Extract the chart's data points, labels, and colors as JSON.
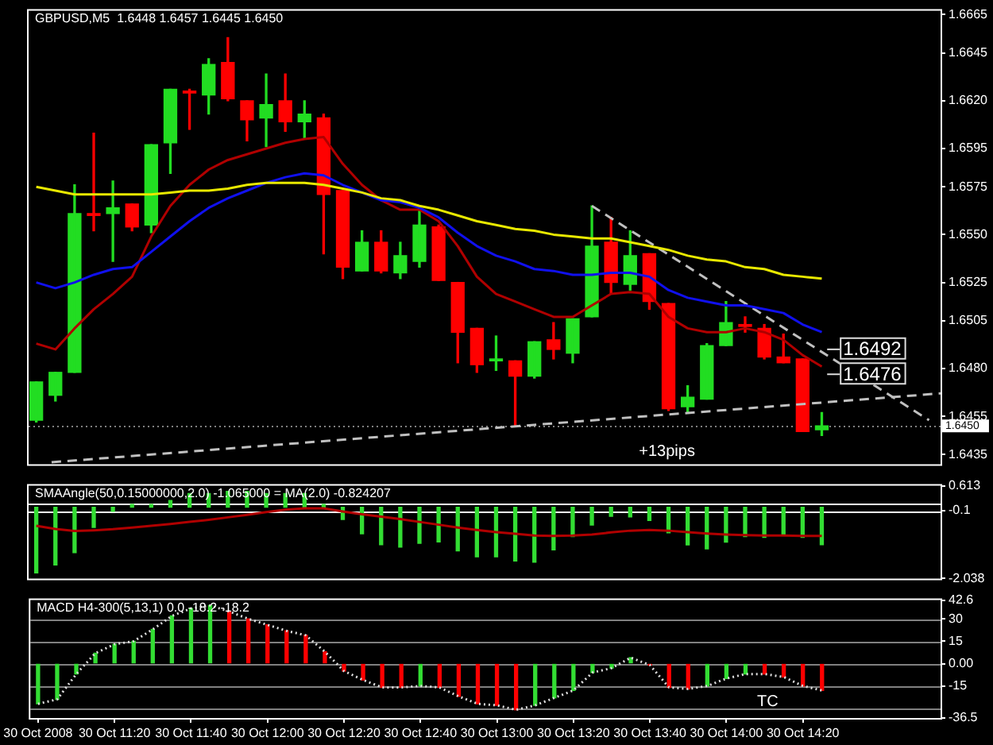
{
  "chart_data": [
    {
      "type": "candlestick",
      "title": "GBPUSD,M5  1.6448 1.6457 1.6445 1.6450",
      "tick_labels": "y",
      "x": [
        "2008-10-30T11:00",
        "2008-10-30T11:05",
        "2008-10-30T11:10",
        "2008-10-30T11:15",
        "2008-10-30T11:20",
        "2008-10-30T11:25",
        "2008-10-30T11:30",
        "2008-10-30T11:35",
        "2008-10-30T11:40",
        "2008-10-30T11:45",
        "2008-10-30T11:50",
        "2008-10-30T11:55",
        "2008-10-30T12:00",
        "2008-10-30T12:05",
        "2008-10-30T12:10",
        "2008-10-30T12:15",
        "2008-10-30T12:20",
        "2008-10-30T12:25",
        "2008-10-30T12:30",
        "2008-10-30T12:35",
        "2008-10-30T12:40",
        "2008-10-30T12:45",
        "2008-10-30T12:50",
        "2008-10-30T12:55",
        "2008-10-30T13:00",
        "2008-10-30T13:05",
        "2008-10-30T13:10",
        "2008-10-30T13:15",
        "2008-10-30T13:20",
        "2008-10-30T13:25",
        "2008-10-30T13:30",
        "2008-10-30T13:35",
        "2008-10-30T13:40",
        "2008-10-30T13:45",
        "2008-10-30T13:50",
        "2008-10-30T13:55",
        "2008-10-30T14:00",
        "2008-10-30T14:05",
        "2008-10-30T14:10",
        "2008-10-30T14:15",
        "2008-10-30T14:20",
        "2008-10-30T14:25"
      ],
      "ohlc": [
        [
          1.6453,
          1.6473,
          1.6452,
          1.6473
        ],
        [
          1.6466,
          1.6478,
          1.6463,
          1.6478
        ],
        [
          1.6478,
          1.6576,
          1.6478,
          1.6561
        ],
        [
          1.6561,
          1.6603,
          1.6552,
          1.656
        ],
        [
          1.6561,
          1.6578,
          1.6536,
          1.6564
        ],
        [
          1.6566,
          1.6566,
          1.6552,
          1.6554
        ],
        [
          1.6555,
          1.6597,
          1.6551,
          1.6597
        ],
        [
          1.6598,
          1.6626,
          1.6582,
          1.6626
        ],
        [
          1.6625,
          1.6626,
          1.6605,
          1.6624
        ],
        [
          1.6623,
          1.6642,
          1.6613,
          1.6639
        ],
        [
          1.664,
          1.6653,
          1.662,
          1.6621
        ],
        [
          1.662,
          1.662,
          1.6599,
          1.661
        ],
        [
          1.6611,
          1.6634,
          1.6596,
          1.6618
        ],
        [
          1.662,
          1.6634,
          1.6604,
          1.6609
        ],
        [
          1.6609,
          1.662,
          1.66,
          1.6613
        ],
        [
          1.6611,
          1.6613,
          1.654,
          1.6571
        ],
        [
          1.6573,
          1.6573,
          1.6527,
          1.6533
        ],
        [
          1.6531,
          1.6552,
          1.6531,
          1.6546
        ],
        [
          1.6546,
          1.6552,
          1.653,
          1.6531
        ],
        [
          1.653,
          1.6546,
          1.6527,
          1.6539
        ],
        [
          1.6536,
          1.6564,
          1.6533,
          1.6555
        ],
        [
          1.6554,
          1.6555,
          1.6526,
          1.6526
        ],
        [
          1.6525,
          1.6525,
          1.6483,
          1.6499
        ],
        [
          1.6501,
          1.6501,
          1.6478,
          1.6482
        ],
        [
          1.6484,
          1.6497,
          1.6479,
          1.6485
        ],
        [
          1.6484,
          1.6484,
          1.645,
          1.6476
        ],
        [
          1.6476,
          1.6494,
          1.6475,
          1.6494
        ],
        [
          1.6495,
          1.6504,
          1.6485,
          1.649
        ],
        [
          1.6488,
          1.6506,
          1.6483,
          1.6506
        ],
        [
          1.6507,
          1.6565,
          1.6507,
          1.6544
        ],
        [
          1.6546,
          1.6559,
          1.6519,
          1.6525
        ],
        [
          1.6524,
          1.6552,
          1.6521,
          1.6539
        ],
        [
          1.654,
          1.654,
          1.6511,
          1.6515
        ],
        [
          1.6514,
          1.6514,
          1.6458,
          1.6459
        ],
        [
          1.646,
          1.6471,
          1.6457,
          1.6465
        ],
        [
          1.6464,
          1.6493,
          1.6464,
          1.6492
        ],
        [
          1.6492,
          1.6515,
          1.6492,
          1.6504
        ],
        [
          1.6503,
          1.6507,
          1.6499,
          1.6502
        ],
        [
          1.6501,
          1.6503,
          1.6485,
          1.6486
        ],
        [
          1.6486,
          1.6498,
          1.6483,
          1.6483
        ],
        [
          1.6485,
          1.6485,
          1.6447,
          1.6447
        ],
        [
          1.6448,
          1.6457,
          1.6445,
          1.645
        ]
      ],
      "colors": [
        "#22dd22",
        "#22dd22",
        "#22dd22",
        "#ff0000",
        "#22dd22",
        "#ff0000",
        "#22dd22",
        "#22dd22",
        "#ff0000",
        "#22dd22",
        "#ff0000",
        "#ff0000",
        "#22dd22",
        "#ff0000",
        "#22dd22",
        "#ff0000",
        "#ff0000",
        "#22dd22",
        "#ff0000",
        "#22dd22",
        "#22dd22",
        "#ff0000",
        "#ff0000",
        "#ff0000",
        "#22dd22",
        "#ff0000",
        "#22dd22",
        "#ff0000",
        "#22dd22",
        "#22dd22",
        "#ff0000",
        "#22dd22",
        "#ff0000",
        "#ff0000",
        "#22dd22",
        "#22dd22",
        "#22dd22",
        "#ff0000",
        "#ff0000",
        "#ff0000",
        "#ff0000",
        "#22dd22"
      ],
      "series": [
        {
          "type": "line",
          "color": "#e8e800",
          "values": [
            1.6575,
            1.6573,
            1.6571,
            1.6571,
            1.6571,
            1.6571,
            1.6571,
            1.6572,
            1.6573,
            1.6573,
            1.6574,
            1.6576,
            1.6577,
            1.6577,
            1.6577,
            1.6576,
            1.6574,
            1.6572,
            1.6569,
            1.6568,
            1.6565,
            1.6563,
            1.656,
            1.6557,
            1.6555,
            1.6553,
            1.6552,
            1.655,
            1.6549,
            1.6548,
            1.6548,
            1.6546,
            1.6544,
            1.6542,
            1.6539,
            1.6537,
            1.6536,
            1.6533,
            1.6532,
            1.6529,
            1.6528,
            1.6527
          ]
        },
        {
          "type": "line",
          "color": "#1010ee",
          "values": [
            1.6525,
            1.6522,
            1.6525,
            1.6529,
            1.6532,
            1.6533,
            1.6541,
            1.6549,
            1.6557,
            1.6564,
            1.6569,
            1.6573,
            1.6577,
            1.658,
            1.6582,
            1.6581,
            1.6576,
            1.6572,
            1.6568,
            1.6567,
            1.6564,
            1.6559,
            1.6551,
            1.6544,
            1.6539,
            1.6536,
            1.6532,
            1.6531,
            1.6529,
            1.6529,
            1.653,
            1.653,
            1.6528,
            1.6521,
            1.6517,
            1.6515,
            1.6513,
            1.6513,
            1.6511,
            1.6509,
            1.6503,
            1.6499
          ]
        },
        {
          "type": "line",
          "color": "#b00000",
          "values": [
            1.6493,
            1.649,
            1.6501,
            1.6511,
            1.6519,
            1.6528,
            1.6549,
            1.6565,
            1.6576,
            1.6584,
            1.6589,
            1.6592,
            1.6595,
            1.6598,
            1.66,
            1.6601,
            1.6587,
            1.6576,
            1.6568,
            1.6563,
            1.6563,
            1.6557,
            1.6544,
            1.6528,
            1.6519,
            1.6515,
            1.6511,
            1.6507,
            1.6507,
            1.6513,
            1.6519,
            1.652,
            1.6519,
            1.6507,
            1.6501,
            1.6499,
            1.6499,
            1.6501,
            1.6499,
            1.6495,
            1.6487,
            1.6481
          ]
        },
        {
          "type": "line",
          "color": "#c0c0c0",
          "line_style": "dashed",
          "x": [
            "2008-10-30T11:04",
            "2008-10-30T14:56"
          ],
          "values": [
            1.6431,
            1.6467
          ]
        },
        {
          "type": "line",
          "color": "#c0c0c0",
          "line_style": "dashed",
          "x": [
            "2008-10-30T13:25",
            "2008-10-30T14:53"
          ],
          "values": [
            1.6565,
            1.6453
          ]
        }
      ],
      "xlim": [
        "2008-10-30T10:58",
        "2008-10-30T14:56"
      ],
      "ylim": [
        1.643,
        1.6667
      ],
      "yticks": [
        1.6665,
        1.6645,
        {
          "value": 1.662,
          "label": "1.6620"
        },
        1.6595,
        1.6575,
        {
          "value": 1.655,
          "label": "1.6550"
        },
        1.6525,
        1.6505,
        {
          "value": 1.648,
          "label": "1.6480"
        },
        1.6455,
        1.6435
      ],
      "ref_lines": [
        {
          "axis": "y",
          "value": 1.645,
          "label": "1.6450",
          "color": "#808080",
          "line_style": "dotted"
        }
      ],
      "annotations": [
        "+13pips",
        "1.6492",
        "1.6476"
      ]
    },
    {
      "type": "bar",
      "title": "SMAAngle(50,0.15000000,2.0) -1.065000 = MA(2.0) -0.824207",
      "tick_labels": "y",
      "x": [
        "2008-10-30T11:00",
        "2008-10-30T11:05",
        "2008-10-30T11:10",
        "2008-10-30T11:15",
        "2008-10-30T11:20",
        "2008-10-30T11:25",
        "2008-10-30T11:30",
        "2008-10-30T11:35",
        "2008-10-30T11:40",
        "2008-10-30T11:45",
        "2008-10-30T11:50",
        "2008-10-30T11:55",
        "2008-10-30T12:00",
        "2008-10-30T12:05",
        "2008-10-30T12:10",
        "2008-10-30T12:15",
        "2008-10-30T12:20",
        "2008-10-30T12:25",
        "2008-10-30T12:30",
        "2008-10-30T12:35",
        "2008-10-30T12:40",
        "2008-10-30T12:45",
        "2008-10-30T12:50",
        "2008-10-30T12:55",
        "2008-10-30T13:00",
        "2008-10-30T13:05",
        "2008-10-30T13:10",
        "2008-10-30T13:15",
        "2008-10-30T13:20",
        "2008-10-30T13:25",
        "2008-10-30T13:30",
        "2008-10-30T13:35",
        "2008-10-30T13:40",
        "2008-10-30T13:45",
        "2008-10-30T13:50",
        "2008-10-30T13:55",
        "2008-10-30T14:00",
        "2008-10-30T14:05",
        "2008-10-30T14:10",
        "2008-10-30T14:15",
        "2008-10-30T14:20",
        "2008-10-30T14:25"
      ],
      "series": [
        {
          "type": "bar",
          "color": "#33dd33",
          "values": [
            -1.88,
            -1.65,
            -1.3,
            -0.58,
            -0.12,
            0.08,
            0.08,
            0.19,
            0.39,
            0.39,
            0.45,
            0.45,
            0.39,
            0.39,
            0.39,
            0.08,
            -0.35,
            -0.76,
            -1.07,
            -1.14,
            -1.03,
            -0.99,
            -1.25,
            -1.42,
            -1.42,
            -1.54,
            -1.57,
            -1.22,
            -0.84,
            -0.51,
            -0.26,
            -0.28,
            -0.38,
            -0.73,
            -1.08,
            -1.19,
            -1.0,
            -0.84,
            -0.86,
            -0.81,
            -0.86,
            -1.07
          ]
        },
        {
          "type": "line",
          "color": "#b00000",
          "values": [
            -0.53,
            -0.62,
            -0.68,
            -0.66,
            -0.63,
            -0.58,
            -0.53,
            -0.48,
            -0.42,
            -0.36,
            -0.29,
            -0.22,
            -0.14,
            -0.07,
            -0.03,
            -0.03,
            -0.12,
            -0.2,
            -0.27,
            -0.34,
            -0.42,
            -0.5,
            -0.58,
            -0.65,
            -0.71,
            -0.76,
            -0.81,
            -0.82,
            -0.81,
            -0.78,
            -0.72,
            -0.67,
            -0.65,
            -0.67,
            -0.71,
            -0.75,
            -0.78,
            -0.8,
            -0.81,
            -0.81,
            -0.82,
            -0.82
          ]
        }
      ],
      "xlim": [
        "2008-10-30T10:58",
        "2008-10-30T14:56"
      ],
      "ylim": [
        -2.038,
        0.613
      ],
      "yticks": [
        0.613,
        -0.1,
        -2.038
      ],
      "ref_lines": [
        {
          "axis": "y",
          "value": 0.1,
          "color": "#ffffff"
        },
        {
          "axis": "y",
          "value": -0.1,
          "color": "#ffffff"
        }
      ]
    },
    {
      "type": "bar",
      "title": "MACD H4-300(5,13,1) 0.0 -18.2 -18.2",
      "x": [
        "2008-10-30T11:00",
        "2008-10-30T11:05",
        "2008-10-30T11:10",
        "2008-10-30T11:15",
        "2008-10-30T11:20",
        "2008-10-30T11:25",
        "2008-10-30T11:30",
        "2008-10-30T11:35",
        "2008-10-30T11:40",
        "2008-10-30T11:45",
        "2008-10-30T11:50",
        "2008-10-30T11:55",
        "2008-10-30T12:00",
        "2008-10-30T12:05",
        "2008-10-30T12:10",
        "2008-10-30T12:15",
        "2008-10-30T12:20",
        "2008-10-30T12:25",
        "2008-10-30T12:30",
        "2008-10-30T12:35",
        "2008-10-30T12:40",
        "2008-10-30T12:45",
        "2008-10-30T12:50",
        "2008-10-30T12:55",
        "2008-10-30T13:00",
        "2008-10-30T13:05",
        "2008-10-30T13:10",
        "2008-10-30T13:15",
        "2008-10-30T13:20",
        "2008-10-30T13:25",
        "2008-10-30T13:30",
        "2008-10-30T13:35",
        "2008-10-30T13:40",
        "2008-10-30T13:45",
        "2008-10-30T13:50",
        "2008-10-30T13:55",
        "2008-10-30T14:00",
        "2008-10-30T14:05",
        "2008-10-30T14:10",
        "2008-10-30T14:15",
        "2008-10-30T14:20",
        "2008-10-30T14:25"
      ],
      "series": [
        {
          "type": "bar",
          "colors": [
            "#33dd33",
            "#33dd33",
            "#33dd33",
            "#33dd33",
            "#33dd33",
            "#33dd33",
            "#33dd33",
            "#33dd33",
            "#33dd33",
            "#33dd33",
            "#ff0000",
            "#ff0000",
            "#ff0000",
            "#ff0000",
            "#ff0000",
            "#ff0000",
            "#ff0000",
            "#ff0000",
            "#ff0000",
            "#ff0000",
            "#33dd33",
            "#ff0000",
            "#ff0000",
            "#ff0000",
            "#ff0000",
            "#ff0000",
            "#33dd33",
            "#33dd33",
            "#33dd33",
            "#33dd33",
            "#33dd33",
            "#33dd33",
            "#ff0000",
            "#ff0000",
            "#ff0000",
            "#33dd33",
            "#33dd33",
            "#33dd33",
            "#ff0000",
            "#ff0000",
            "#ff0000",
            "#ff0000"
          ],
          "values": [
            -27,
            -24,
            -7,
            7,
            13,
            15,
            23,
            32,
            37,
            39,
            35,
            30,
            26,
            22,
            19,
            8,
            -5,
            -11,
            -16,
            -16,
            -15,
            -16,
            -22,
            -27,
            -28,
            -31,
            -28,
            -23,
            -18,
            -6,
            -3,
            4,
            -1,
            -16,
            -17,
            -15,
            -10,
            -7,
            -7,
            -9,
            -15,
            -18
          ]
        },
        {
          "type": "line",
          "color": "#dddddd",
          "line_style": "dotted",
          "values": [
            -27,
            -24,
            -7,
            7,
            13,
            15,
            23,
            32,
            37,
            39,
            35,
            30,
            26,
            22,
            19,
            8,
            -5,
            -11,
            -16,
            -16,
            -15,
            -16,
            -22,
            -27,
            -28,
            -31,
            -28,
            -23,
            -18,
            -6,
            -3,
            4,
            -1,
            -16,
            -17,
            -15,
            -10,
            -7,
            -7,
            -9,
            -15,
            -18
          ]
        }
      ],
      "xlim": [
        "2008-10-30T10:58",
        "2008-10-30T14:56"
      ],
      "xticks": [
        {
          "value": "2008-10-30T11:00",
          "label": "30 Oct 2008"
        },
        {
          "value": "2008-10-30T11:20",
          "label": "30 Oct 11:20"
        },
        {
          "value": "2008-10-30T11:40",
          "label": "30 Oct 11:40"
        },
        {
          "value": "2008-10-30T12:00",
          "label": "30 Oct 12:00"
        },
        {
          "value": "2008-10-30T12:20",
          "label": "30 Oct 12:20"
        },
        {
          "value": "2008-10-30T12:40",
          "label": "30 Oct 12:40"
        },
        {
          "value": "2008-10-30T13:00",
          "label": "30 Oct 13:00"
        },
        {
          "value": "2008-10-30T13:20",
          "label": "30 Oct 13:20"
        },
        {
          "value": "2008-10-30T13:40",
          "label": "30 Oct 13:40"
        },
        {
          "value": "2008-10-30T14:00",
          "label": "30 Oct 14:00"
        },
        {
          "value": "2008-10-30T14:20",
          "label": "30 Oct 14:20"
        }
      ],
      "ylim": [
        -36.5,
        42.6
      ],
      "yticks": [
        42.6,
        30,
        15,
        {
          "value": 0,
          "label": "0.00"
        },
        -15,
        -36.5
      ],
      "ref_lines": [
        {
          "axis": "y",
          "value": 30,
          "color": "#808080"
        },
        {
          "axis": "y",
          "value": 15,
          "color": "#808080"
        },
        {
          "axis": "y",
          "value": 0,
          "color": "#808080"
        },
        {
          "axis": "y",
          "value": -15,
          "color": "#808080"
        },
        {
          "axis": "y",
          "value": -30,
          "color": "#808080"
        }
      ],
      "annotations": [
        "TC"
      ]
    }
  ]
}
